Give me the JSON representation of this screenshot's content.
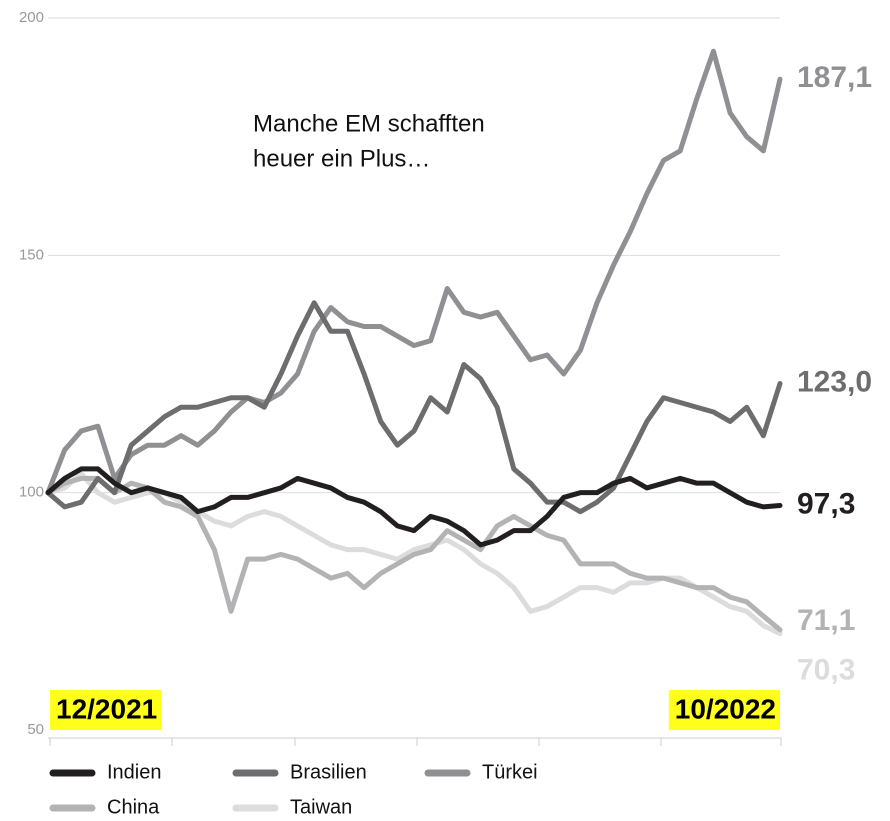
{
  "chart_data": {
    "type": "line",
    "annotation": [
      "Manche EM schafften",
      "heuer ein Plus…"
    ],
    "categories": [
      "12/2021",
      null,
      null,
      null,
      null,
      null,
      null,
      null,
      null,
      null,
      null,
      null,
      null,
      null,
      null,
      null,
      null,
      null,
      null,
      null,
      null,
      null,
      null,
      null,
      null,
      null,
      null,
      null,
      null,
      null,
      null,
      null,
      null,
      null,
      null,
      null,
      null,
      null,
      null,
      null,
      null,
      null,
      null,
      null,
      "10/2022"
    ],
    "ylim": [
      50,
      200
    ],
    "yticks": [
      50,
      100,
      150,
      200
    ],
    "grid": true,
    "series": [
      {
        "name": "Indien",
        "color": "#231f20",
        "end_label": "97,3",
        "values": [
          100,
          103,
          105,
          105,
          102,
          100,
          101,
          100,
          99,
          96,
          97,
          99,
          99,
          100,
          101,
          103,
          102,
          101,
          99,
          98,
          96,
          93,
          92,
          95,
          94,
          92,
          89,
          90,
          92,
          92,
          95,
          99,
          100,
          100,
          102,
          103,
          101,
          102,
          103,
          102,
          102,
          100,
          98,
          97,
          97.3
        ]
      },
      {
        "name": "Brasilien",
        "color": "#6d6d6f",
        "end_label": "123,0",
        "values": [
          100,
          97,
          98,
          103,
          100,
          110,
          113,
          116,
          118,
          118,
          119,
          120,
          120,
          118,
          125,
          133,
          140,
          134,
          134,
          125,
          115,
          110,
          113,
          120,
          117,
          127,
          124,
          118,
          105,
          102,
          98,
          98,
          96,
          98,
          101,
          108,
          115,
          120,
          119,
          118,
          117,
          115,
          118,
          112,
          123.0
        ]
      },
      {
        "name": "Türkei",
        "color": "#909094",
        "end_label": "187,1",
        "values": [
          100,
          109,
          113,
          114,
          103,
          108,
          110,
          110,
          112,
          110,
          113,
          117,
          120,
          119,
          121,
          125,
          134,
          139,
          136,
          135,
          135,
          133,
          131,
          132,
          143,
          138,
          137,
          138,
          133,
          128,
          129,
          125,
          130,
          140,
          148,
          155,
          163,
          170,
          172,
          183,
          193,
          180,
          175,
          172,
          187.1
        ]
      },
      {
        "name": "China",
        "color": "#b3b3b5",
        "end_label": "71,1",
        "values": [
          100,
          102,
          103,
          103,
          100,
          102,
          101,
          98,
          97,
          95,
          88,
          75,
          86,
          86,
          87,
          86,
          84,
          82,
          83,
          80,
          83,
          85,
          87,
          88,
          92,
          90,
          88,
          93,
          95,
          93,
          91,
          90,
          85,
          85,
          85,
          83,
          82,
          82,
          81,
          80,
          80,
          78,
          77,
          74,
          71.1
        ]
      },
      {
        "name": "Taiwan",
        "color": "#dcdcdc",
        "end_label": "70,3",
        "values": [
          100,
          101,
          104,
          100,
          98,
          99,
          100,
          100,
          98,
          96,
          94,
          93,
          95,
          96,
          95,
          93,
          91,
          89,
          88,
          88,
          87,
          86,
          88,
          89,
          90,
          88,
          85,
          83,
          80,
          75,
          76,
          78,
          80,
          80,
          79,
          81,
          81,
          82,
          82,
          80,
          78,
          76,
          75,
          72,
          70.3
        ]
      }
    ]
  }
}
